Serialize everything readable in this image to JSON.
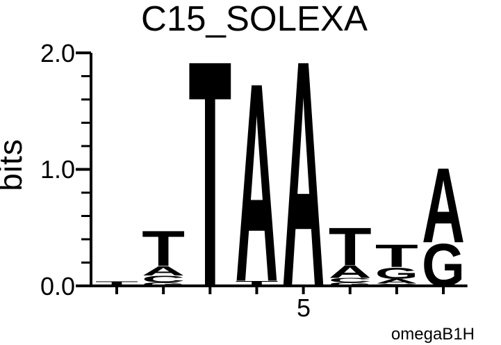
{
  "chart_data": {
    "type": "sequence_logo",
    "title": "C15_SOLEXA",
    "ylabel": "bits",
    "attribution": "omegaB1H",
    "ylim": [
      0.0,
      2.0
    ],
    "yticks": [
      0.0,
      1.0,
      2.0
    ],
    "ytick_labels": [
      "0.0",
      "1.0",
      "2.0"
    ],
    "minor_tick_step": 0.2,
    "grid": false,
    "xticks": [
      {
        "label": "5",
        "position": 5
      }
    ],
    "colors": {
      "A": "#008000",
      "C": "#0000EE",
      "G": "#FFA500",
      "T": "#FF0000"
    },
    "positions": [
      {
        "index": 1,
        "stack": [
          {
            "letter": "T",
            "bits": 0.04
          }
        ]
      },
      {
        "index": 2,
        "stack": [
          {
            "letter": "G",
            "bits": 0.03
          },
          {
            "letter": "C",
            "bits": 0.06
          },
          {
            "letter": "A",
            "bits": 0.08
          },
          {
            "letter": "T",
            "bits": 0.31
          }
        ]
      },
      {
        "index": 3,
        "stack": [
          {
            "letter": "T",
            "bits": 2.0
          }
        ]
      },
      {
        "index": 4,
        "stack": [
          {
            "letter": "T",
            "bits": 0.045
          },
          {
            "letter": "A",
            "bits": 1.755
          }
        ]
      },
      {
        "index": 5,
        "stack": [
          {
            "letter": "A",
            "bits": 2.0
          }
        ]
      },
      {
        "index": 6,
        "stack": [
          {
            "letter": "G",
            "bits": 0.03
          },
          {
            "letter": "C",
            "bits": 0.04
          },
          {
            "letter": "A",
            "bits": 0.11
          },
          {
            "letter": "T",
            "bits": 0.33
          }
        ]
      },
      {
        "index": 7,
        "stack": [
          {
            "letter": "C",
            "bits": 0.02
          },
          {
            "letter": "A",
            "bits": 0.04
          },
          {
            "letter": "G",
            "bits": 0.1
          },
          {
            "letter": "T",
            "bits": 0.2
          }
        ]
      },
      {
        "index": 8,
        "stack": [
          {
            "letter": "G",
            "bits": 0.375
          },
          {
            "letter": "A",
            "bits": 0.66
          }
        ]
      }
    ]
  }
}
